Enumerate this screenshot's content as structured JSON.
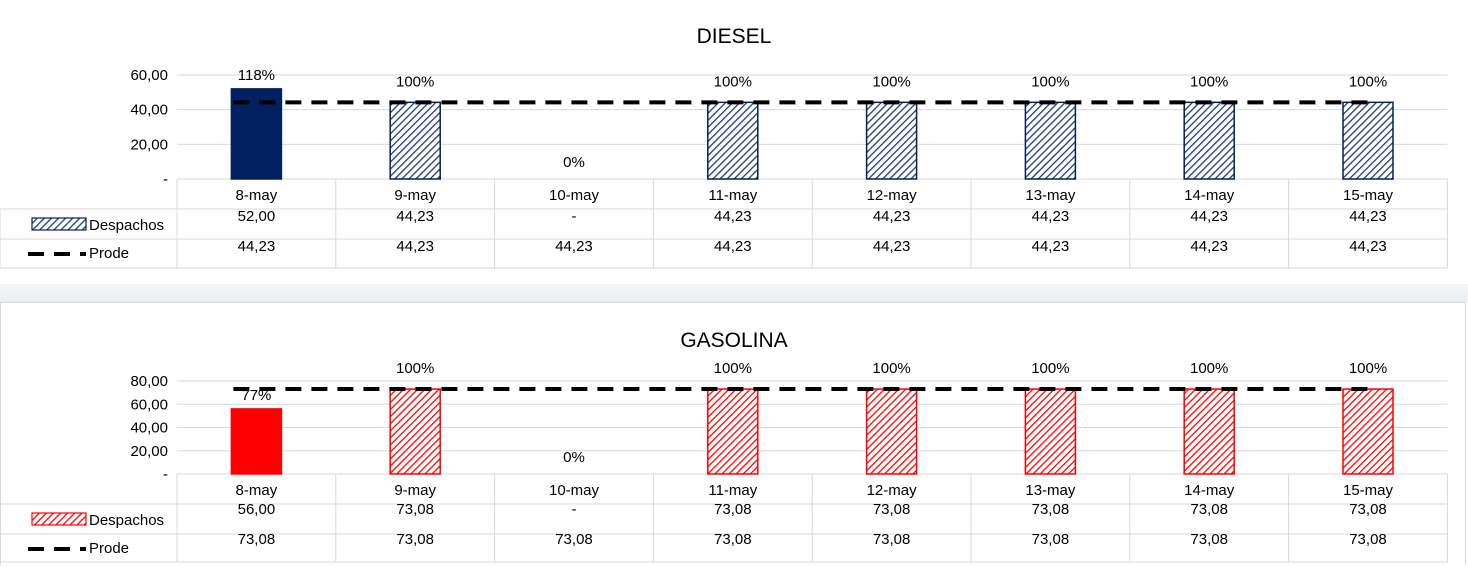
{
  "colors": {
    "diesel_solid": "#002060",
    "diesel_hatch": "#1f3c74",
    "gasolina_solid": "#ff0000",
    "gasolina_hatch": "#ff0000",
    "prode_line": "#000000",
    "grid": "#d9d9d9",
    "text": "#000000"
  },
  "chart_data": [
    {
      "type": "bar",
      "title": "DIESEL",
      "categories": [
        "8-may",
        "9-may",
        "10-may",
        "11-may",
        "12-may",
        "13-may",
        "14-may",
        "15-may"
      ],
      "ylim": [
        0,
        60
      ],
      "yticks": [
        "60,00",
        "40,00",
        "20,00",
        "-"
      ],
      "grid": true,
      "series": [
        {
          "name": "Despachos",
          "values": [
            52.0,
            44.23,
            0,
            44.23,
            44.23,
            44.23,
            44.23,
            44.23
          ],
          "labels": [
            "52,00",
            "44,23",
            "-",
            "44,23",
            "44,23",
            "44,23",
            "44,23",
            "44,23"
          ],
          "data_labels": [
            "118%",
            "100%",
            "0%",
            "100%",
            "100%",
            "100%",
            "100%",
            "100%"
          ]
        },
        {
          "name": "Prode",
          "style": "dashed-line",
          "values": [
            44.23,
            44.23,
            44.23,
            44.23,
            44.23,
            44.23,
            44.23,
            44.23
          ],
          "labels": [
            "44,23",
            "44,23",
            "44,23",
            "44,23",
            "44,23",
            "44,23",
            "44,23",
            "44,23"
          ]
        }
      ]
    },
    {
      "type": "bar",
      "title": "GASOLINA",
      "categories": [
        "8-may",
        "9-may",
        "10-may",
        "11-may",
        "12-may",
        "13-may",
        "14-may",
        "15-may"
      ],
      "ylim": [
        0,
        80
      ],
      "yticks": [
        "80,00",
        "60,00",
        "40,00",
        "20,00",
        "-"
      ],
      "grid": true,
      "series": [
        {
          "name": "Despachos",
          "values": [
            56.0,
            73.08,
            0,
            73.08,
            73.08,
            73.08,
            73.08,
            73.08
          ],
          "labels": [
            "56,00",
            "73,08",
            "-",
            "73,08",
            "73,08",
            "73,08",
            "73,08",
            "73,08"
          ],
          "data_labels": [
            "77%",
            "100%",
            "0%",
            "100%",
            "100%",
            "100%",
            "100%",
            "100%"
          ]
        },
        {
          "name": "Prode",
          "style": "dashed-line",
          "values": [
            73.08,
            73.08,
            73.08,
            73.08,
            73.08,
            73.08,
            73.08,
            73.08
          ],
          "labels": [
            "73,08",
            "73,08",
            "73,08",
            "73,08",
            "73,08",
            "73,08",
            "73,08",
            "73,08"
          ]
        }
      ]
    }
  ]
}
